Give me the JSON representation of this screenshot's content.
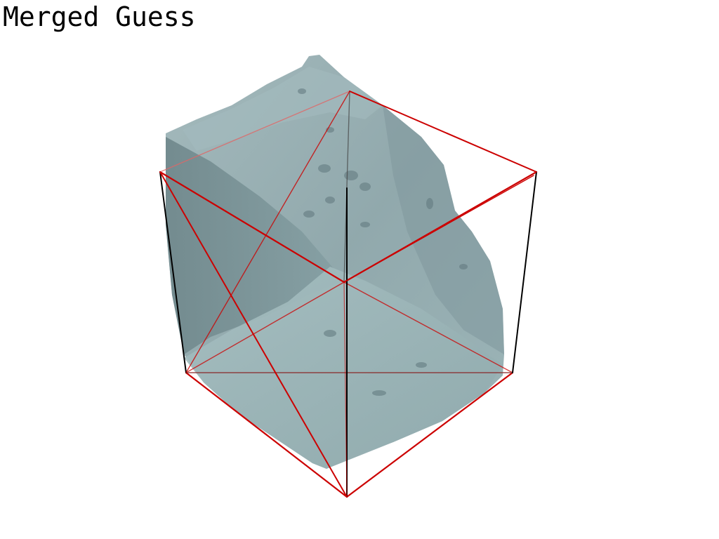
{
  "title": "Merged Guess",
  "colors": {
    "background": "#ffffff",
    "mesh": "#88a2a6",
    "mesh_shadow": "#6c8589",
    "mesh_light": "#a9c2c4",
    "box_edge": "#cc0000",
    "box_vertical": "#000000"
  }
}
